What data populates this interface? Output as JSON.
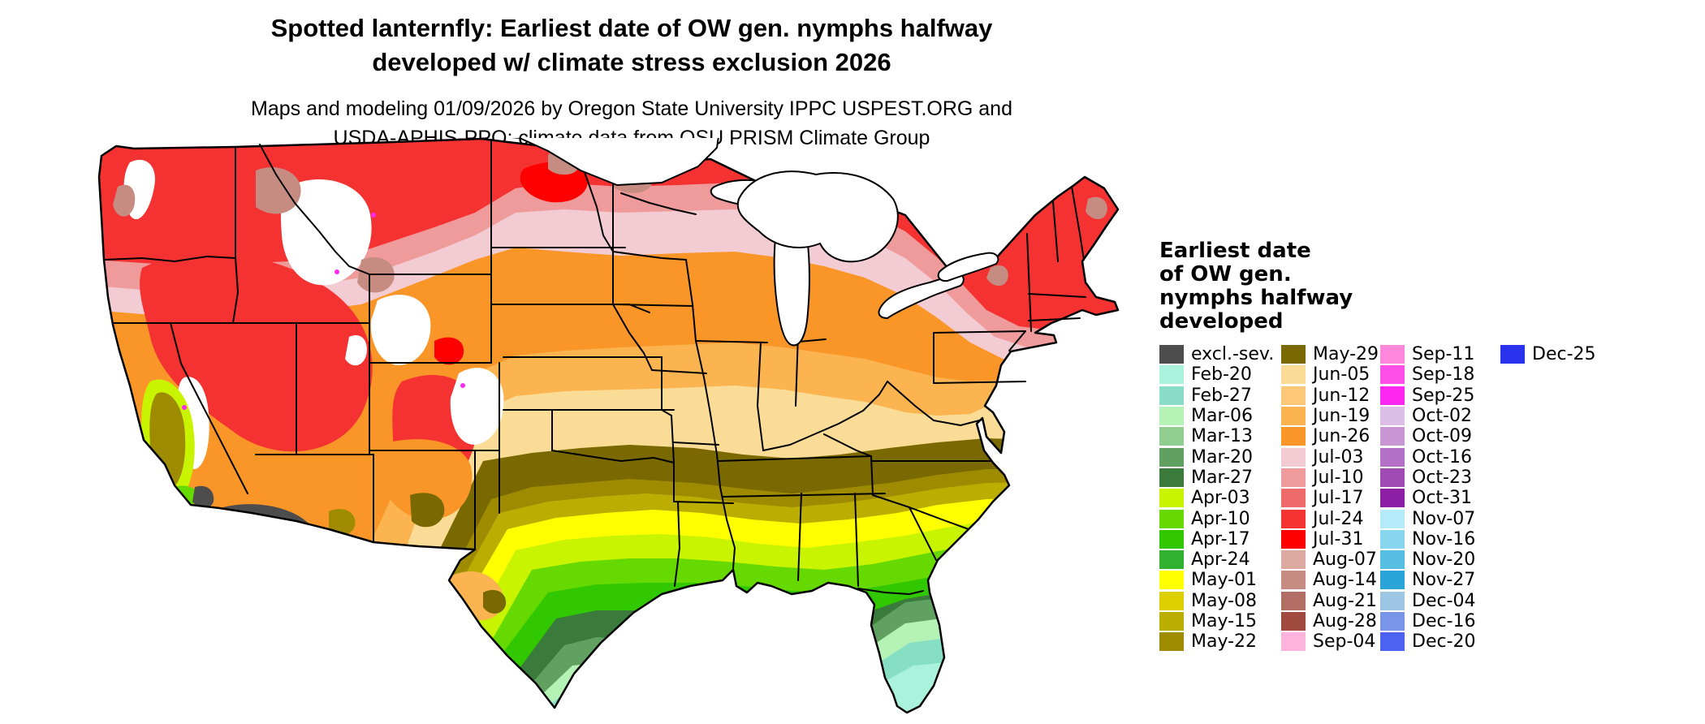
{
  "title": {
    "line1": "Spotted lanternfly: Earliest date of OW gen. nymphs halfway",
    "line2": "developed w/ climate stress exclusion 2026"
  },
  "subtitle": {
    "line1": "Maps and modeling 01/09/2026 by Oregon State University IPPC USPEST.ORG and",
    "line2": "USDA-APHIS-PPQ; climate data from OSU PRISM Climate Group"
  },
  "legend": {
    "title_lines": [
      "Earliest date",
      "of OW gen.",
      "nymphs halfway",
      "developed"
    ],
    "columns": [
      {
        "entries": [
          {
            "label": "excl.-sev.",
            "color": "#4d4d4d"
          },
          {
            "label": "Feb-20",
            "color": "#aaf2dc"
          },
          {
            "label": "Feb-27",
            "color": "#88dcc8"
          },
          {
            "label": "Mar-06",
            "color": "#b5f2b5"
          },
          {
            "label": "Mar-13",
            "color": "#8fce8f"
          },
          {
            "label": "Mar-20",
            "color": "#60a060"
          },
          {
            "label": "Mar-27",
            "color": "#3a7a3a"
          },
          {
            "label": "Apr-03",
            "color": "#c8f400"
          },
          {
            "label": "Apr-10",
            "color": "#66d900"
          },
          {
            "label": "Apr-17",
            "color": "#32c800"
          },
          {
            "label": "Apr-24",
            "color": "#30b230"
          },
          {
            "label": "May-01",
            "color": "#ffff00"
          },
          {
            "label": "May-08",
            "color": "#ddce00"
          },
          {
            "label": "May-15",
            "color": "#bcae00"
          },
          {
            "label": "May-22",
            "color": "#9e8b00"
          }
        ]
      },
      {
        "entries": [
          {
            "label": "May-29",
            "color": "#7a6900"
          },
          {
            "label": "Jun-05",
            "color": "#fbdc96"
          },
          {
            "label": "Jun-12",
            "color": "#fcc878"
          },
          {
            "label": "Jun-19",
            "color": "#fbb450"
          },
          {
            "label": "Jun-26",
            "color": "#fa9628"
          },
          {
            "label": "Jul-03",
            "color": "#f2ccd2"
          },
          {
            "label": "Jul-10",
            "color": "#ef9b9b"
          },
          {
            "label": "Jul-17",
            "color": "#ef6b6b"
          },
          {
            "label": "Jul-24",
            "color": "#f53232"
          },
          {
            "label": "Jul-31",
            "color": "#fe0000"
          },
          {
            "label": "Aug-07",
            "color": "#dcaaa0"
          },
          {
            "label": "Aug-14",
            "color": "#c68c82"
          },
          {
            "label": "Aug-21",
            "color": "#b26e64"
          },
          {
            "label": "Aug-28",
            "color": "#a04a40"
          },
          {
            "label": "Sep-04",
            "color": "#fcb4dc"
          }
        ]
      },
      {
        "entries": [
          {
            "label": "Sep-11",
            "color": "#fe87dc"
          },
          {
            "label": "Sep-18",
            "color": "#fe50e6"
          },
          {
            "label": "Sep-25",
            "color": "#fe28f0"
          },
          {
            "label": "Oct-02",
            "color": "#dcbee6"
          },
          {
            "label": "Oct-09",
            "color": "#c896d2"
          },
          {
            "label": "Oct-16",
            "color": "#b470c6"
          },
          {
            "label": "Oct-23",
            "color": "#a04ab4"
          },
          {
            "label": "Oct-31",
            "color": "#8c1fa4"
          },
          {
            "label": "Nov-07",
            "color": "#b4eafa"
          },
          {
            "label": "Nov-16",
            "color": "#87d5ee"
          },
          {
            "label": "Nov-20",
            "color": "#55bee1"
          },
          {
            "label": "Nov-27",
            "color": "#2aa5d8"
          },
          {
            "label": "Dec-04",
            "color": "#9dc6e4"
          },
          {
            "label": "Dec-16",
            "color": "#7895e8"
          },
          {
            "label": "Dec-20",
            "color": "#4c62f0"
          }
        ]
      },
      {
        "entries": [
          {
            "label": "Dec-25",
            "color": "#2a32ee"
          }
        ]
      }
    ]
  }
}
